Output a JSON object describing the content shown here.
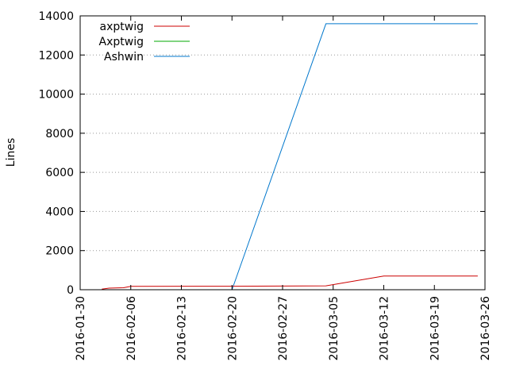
{
  "chart_data": {
    "type": "line",
    "title": "",
    "xlabel": "",
    "ylabel": "Lines",
    "x_tick_labels": [
      "2016-01-30",
      "2016-02-06",
      "2016-02-13",
      "2016-02-20",
      "2016-02-27",
      "2016-03-05",
      "2016-03-12",
      "2016-03-19",
      "2016-03-26"
    ],
    "xlim": [
      "2016-01-30",
      "2016-03-26"
    ],
    "ylim": [
      0,
      14000
    ],
    "y_ticks": [
      0,
      2000,
      4000,
      6000,
      8000,
      10000,
      12000,
      14000
    ],
    "grid": "horizontal dotted",
    "legend_position": "top-left",
    "series": [
      {
        "name": "axptwig",
        "color": "#cc0000",
        "points": [
          [
            "2016-02-02",
            30
          ],
          [
            "2016-02-03",
            80
          ],
          [
            "2016-02-05",
            100
          ],
          [
            "2016-02-06",
            170
          ],
          [
            "2016-02-20",
            180
          ],
          [
            "2016-03-04",
            200
          ],
          [
            "2016-03-12",
            700
          ],
          [
            "2016-03-25",
            700
          ]
        ]
      },
      {
        "name": "Axptwig",
        "color": "#00aa00",
        "points": []
      },
      {
        "name": "Ashwin",
        "color": "#0077cc",
        "points": [
          [
            "2016-02-20",
            0
          ],
          [
            "2016-03-04",
            13600
          ],
          [
            "2016-03-25",
            13600
          ]
        ]
      }
    ]
  }
}
